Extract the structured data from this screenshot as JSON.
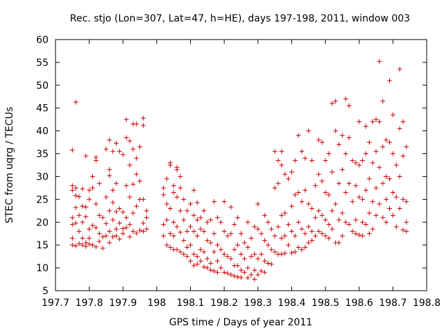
{
  "chart_data": {
    "type": "scatter",
    "title": "Rec. stjo (Lon=307, Lat=47, h=HE), days 197-198, 2011, window 003",
    "xlabel": "GPS time / Days of year 2011",
    "ylabel": "STEC from uqrg / TECUs",
    "xlim": [
      197.7,
      198.8
    ],
    "ylim": [
      5,
      60
    ],
    "xticks": [
      "197.7",
      "197.8",
      "197.9",
      "198",
      "198.1",
      "198.2",
      "198.3",
      "198.4",
      "198.5",
      "198.6",
      "198.7",
      "198.8"
    ],
    "yticks": [
      "5",
      "10",
      "15",
      "20",
      "25",
      "30",
      "35",
      "40",
      "45",
      "50",
      "55",
      "60"
    ],
    "marker": "plus",
    "color": "#cc0000",
    "grid": false,
    "points": [
      [
        197.75,
        35.8
      ],
      [
        197.75,
        28.0
      ],
      [
        197.75,
        27.0
      ],
      [
        197.75,
        21.0
      ],
      [
        197.75,
        19.5
      ],
      [
        197.75,
        16.5
      ],
      [
        197.75,
        15.0
      ],
      [
        197.76,
        46.3
      ],
      [
        197.76,
        27.5
      ],
      [
        197.76,
        25.8
      ],
      [
        197.76,
        23.2
      ],
      [
        197.76,
        19.8
      ],
      [
        197.76,
        14.8
      ],
      [
        197.77,
        25.6
      ],
      [
        197.77,
        21.5
      ],
      [
        197.77,
        18.0
      ],
      [
        197.77,
        15.3
      ],
      [
        197.78,
        27.3
      ],
      [
        197.78,
        23.5
      ],
      [
        197.78,
        20.0
      ],
      [
        197.78,
        16.5
      ],
      [
        197.78,
        15.0
      ],
      [
        197.79,
        34.5
      ],
      [
        197.79,
        23.3
      ],
      [
        197.79,
        21.2
      ],
      [
        197.79,
        15.5
      ],
      [
        197.79,
        14.7
      ],
      [
        197.8,
        27.0
      ],
      [
        197.8,
        25.0
      ],
      [
        197.8,
        18.5
      ],
      [
        197.8,
        16.5
      ],
      [
        197.8,
        15.2
      ],
      [
        197.81,
        30.0
      ],
      [
        197.81,
        27.5
      ],
      [
        197.81,
        19.3
      ],
      [
        197.81,
        15.0
      ],
      [
        197.82,
        34.2
      ],
      [
        197.82,
        33.5
      ],
      [
        197.82,
        24.0
      ],
      [
        197.82,
        18.8
      ],
      [
        197.82,
        14.6
      ],
      [
        197.83,
        28.5
      ],
      [
        197.83,
        21.5
      ],
      [
        197.83,
        17.5
      ],
      [
        197.83,
        15.8
      ],
      [
        197.84,
        21.0
      ],
      [
        197.84,
        16.8
      ],
      [
        197.84,
        14.3
      ],
      [
        197.85,
        36.0
      ],
      [
        197.85,
        25.5
      ],
      [
        197.85,
        19.7
      ],
      [
        197.85,
        17.0
      ],
      [
        197.86,
        38.0
      ],
      [
        197.86,
        31.5
      ],
      [
        197.86,
        30.2
      ],
      [
        197.86,
        22.5
      ],
      [
        197.86,
        18.0
      ],
      [
        197.86,
        15.5
      ],
      [
        197.87,
        35.5
      ],
      [
        197.87,
        27.0
      ],
      [
        197.87,
        24.3
      ],
      [
        197.87,
        20.5
      ],
      [
        197.87,
        16.8
      ],
      [
        197.88,
        37.3
      ],
      [
        197.88,
        28.5
      ],
      [
        197.88,
        22.3
      ],
      [
        197.88,
        18.5
      ],
      [
        197.88,
        17.0
      ],
      [
        197.89,
        35.5
      ],
      [
        197.89,
        23.0
      ],
      [
        197.89,
        19.8
      ],
      [
        197.89,
        16.3
      ],
      [
        197.9,
        34.8
      ],
      [
        197.9,
        22.2
      ],
      [
        197.9,
        18.6
      ],
      [
        197.9,
        17.5
      ],
      [
        197.91,
        42.5
      ],
      [
        197.91,
        38.5
      ],
      [
        197.91,
        28.0
      ],
      [
        197.91,
        21.0
      ],
      [
        197.91,
        18.8
      ],
      [
        197.92,
        37.8
      ],
      [
        197.92,
        32.5
      ],
      [
        197.92,
        25.5
      ],
      [
        197.92,
        19.5
      ],
      [
        197.92,
        16.8
      ],
      [
        197.93,
        41.5
      ],
      [
        197.93,
        36.0
      ],
      [
        197.93,
        28.3
      ],
      [
        197.93,
        22.0
      ],
      [
        197.93,
        18.0
      ],
      [
        197.94,
        41.5
      ],
      [
        197.94,
        34.0
      ],
      [
        197.94,
        30.5
      ],
      [
        197.94,
        23.5
      ],
      [
        197.94,
        17.6
      ],
      [
        197.95,
        36.5
      ],
      [
        197.95,
        29.0
      ],
      [
        197.95,
        25.0
      ],
      [
        197.95,
        18.2
      ],
      [
        197.96,
        42.8
      ],
      [
        197.96,
        41.2
      ],
      [
        197.96,
        25.0
      ],
      [
        197.96,
        19.8
      ],
      [
        197.96,
        18.0
      ],
      [
        197.97,
        22.5
      ],
      [
        197.97,
        21.0
      ],
      [
        197.97,
        18.5
      ],
      [
        198.02,
        27.5
      ],
      [
        198.02,
        26.0
      ],
      [
        198.02,
        19.5
      ],
      [
        198.02,
        17.0
      ],
      [
        198.03,
        29.5
      ],
      [
        198.03,
        24.0
      ],
      [
        198.03,
        20.5
      ],
      [
        198.03,
        15.0
      ],
      [
        198.04,
        33.0
      ],
      [
        198.04,
        32.5
      ],
      [
        198.04,
        23.0
      ],
      [
        198.04,
        17.5
      ],
      [
        198.04,
        14.5
      ],
      [
        198.05,
        28.0
      ],
      [
        198.05,
        26.5
      ],
      [
        198.05,
        20.0
      ],
      [
        198.05,
        17.0
      ],
      [
        198.05,
        14.0
      ],
      [
        198.06,
        32.0
      ],
      [
        198.06,
        31.5
      ],
      [
        198.06,
        25.5
      ],
      [
        198.06,
        19.0
      ],
      [
        198.06,
        14.0
      ],
      [
        198.07,
        30.0
      ],
      [
        198.07,
        27.5
      ],
      [
        198.07,
        22.5
      ],
      [
        198.07,
        17.8
      ],
      [
        198.07,
        13.5
      ],
      [
        198.08,
        25.0
      ],
      [
        198.08,
        20.5
      ],
      [
        198.08,
        16.0
      ],
      [
        198.08,
        13.0
      ],
      [
        198.09,
        22.5
      ],
      [
        198.09,
        18.0
      ],
      [
        198.09,
        14.5
      ],
      [
        198.09,
        12.5
      ],
      [
        198.1,
        24.0
      ],
      [
        198.1,
        19.0
      ],
      [
        198.1,
        15.0
      ],
      [
        198.1,
        11.5
      ],
      [
        198.11,
        27.0
      ],
      [
        198.11,
        21.5
      ],
      [
        198.11,
        18.0
      ],
      [
        198.11,
        13.0
      ],
      [
        198.11,
        10.5
      ],
      [
        198.12,
        24.3
      ],
      [
        198.12,
        20.5
      ],
      [
        198.12,
        17.0
      ],
      [
        198.12,
        12.5
      ],
      [
        198.12,
        10.8
      ],
      [
        198.13,
        21.0
      ],
      [
        198.13,
        18.5
      ],
      [
        198.13,
        14.0
      ],
      [
        198.13,
        11.5
      ],
      [
        198.14,
        22.5
      ],
      [
        198.14,
        18.0
      ],
      [
        198.14,
        13.5
      ],
      [
        198.14,
        10.2
      ],
      [
        198.15,
        20.0
      ],
      [
        198.15,
        16.0
      ],
      [
        198.15,
        12.0
      ],
      [
        198.15,
        10.0
      ],
      [
        198.16,
        20.5
      ],
      [
        198.16,
        15.5
      ],
      [
        198.16,
        11.0
      ],
      [
        198.16,
        9.5
      ],
      [
        198.17,
        24.5
      ],
      [
        198.17,
        17.5
      ],
      [
        198.17,
        13.5
      ],
      [
        198.17,
        9.3
      ],
      [
        198.18,
        21.0
      ],
      [
        198.18,
        15.0
      ],
      [
        198.18,
        11.5
      ],
      [
        198.18,
        9.0
      ],
      [
        198.19,
        20.0
      ],
      [
        198.19,
        14.0
      ],
      [
        198.19,
        10.0
      ],
      [
        198.2,
        24.5
      ],
      [
        198.2,
        18.0
      ],
      [
        198.2,
        13.0
      ],
      [
        198.2,
        9.0
      ],
      [
        198.21,
        17.0
      ],
      [
        198.21,
        12.5
      ],
      [
        198.21,
        8.8
      ],
      [
        198.22,
        23.3
      ],
      [
        198.22,
        17.5
      ],
      [
        198.22,
        12.0
      ],
      [
        198.22,
        8.5
      ],
      [
        198.23,
        19.5
      ],
      [
        198.23,
        14.0
      ],
      [
        198.23,
        10.5
      ],
      [
        198.23,
        8.2
      ],
      [
        198.24,
        21.0
      ],
      [
        198.24,
        15.0
      ],
      [
        198.24,
        10.5
      ],
      [
        198.24,
        8.0
      ],
      [
        198.25,
        17.5
      ],
      [
        198.25,
        13.0
      ],
      [
        198.25,
        9.5
      ],
      [
        198.25,
        7.9
      ],
      [
        198.26,
        15.5
      ],
      [
        198.26,
        12.0
      ],
      [
        198.26,
        9.0
      ],
      [
        198.27,
        20.0
      ],
      [
        198.27,
        14.5
      ],
      [
        198.27,
        10.0
      ],
      [
        198.27,
        7.8
      ],
      [
        198.28,
        16.5
      ],
      [
        198.28,
        12.5
      ],
      [
        198.28,
        8.5
      ],
      [
        198.29,
        19.0
      ],
      [
        198.29,
        13.0
      ],
      [
        198.29,
        9.5
      ],
      [
        198.29,
        7.5
      ],
      [
        198.3,
        24.0
      ],
      [
        198.3,
        18.5
      ],
      [
        198.3,
        12.0
      ],
      [
        198.3,
        8.5
      ],
      [
        198.31,
        17.5
      ],
      [
        198.31,
        13.0
      ],
      [
        198.31,
        9.3
      ],
      [
        198.32,
        21.5
      ],
      [
        198.32,
        16.0
      ],
      [
        198.32,
        11.5
      ],
      [
        198.32,
        9.0
      ],
      [
        198.33,
        20.0
      ],
      [
        198.33,
        15.0
      ],
      [
        198.33,
        11.0
      ],
      [
        198.34,
        18.5
      ],
      [
        198.34,
        14.0
      ],
      [
        198.34,
        10.8
      ],
      [
        198.35,
        35.5
      ],
      [
        198.35,
        27.5
      ],
      [
        198.35,
        17.0
      ],
      [
        198.35,
        13.5
      ],
      [
        198.36,
        33.5
      ],
      [
        198.36,
        28.5
      ],
      [
        198.36,
        19.0
      ],
      [
        198.36,
        13.0
      ],
      [
        198.37,
        35.5
      ],
      [
        198.37,
        32.5
      ],
      [
        198.37,
        21.5
      ],
      [
        198.37,
        16.5
      ],
      [
        198.37,
        13.0
      ],
      [
        198.38,
        30.5
      ],
      [
        198.38,
        22.0
      ],
      [
        198.38,
        17.0
      ],
      [
        198.38,
        13.2
      ],
      [
        198.39,
        29.5
      ],
      [
        198.39,
        19.5
      ],
      [
        198.39,
        15.0
      ],
      [
        198.4,
        31.0
      ],
      [
        198.4,
        23.5
      ],
      [
        198.4,
        18.0
      ],
      [
        198.4,
        13.3
      ],
      [
        198.41,
        33.5
      ],
      [
        198.41,
        26.0
      ],
      [
        198.41,
        17.0
      ],
      [
        198.41,
        13.5
      ],
      [
        198.42,
        39.0
      ],
      [
        198.42,
        26.5
      ],
      [
        198.42,
        20.0
      ],
      [
        198.42,
        14.5
      ],
      [
        198.43,
        35.5
      ],
      [
        198.43,
        24.5
      ],
      [
        198.43,
        18.5
      ],
      [
        198.43,
        14.0
      ],
      [
        198.44,
        34.0
      ],
      [
        198.44,
        27.0
      ],
      [
        198.44,
        17.5
      ],
      [
        198.44,
        14.5
      ],
      [
        198.45,
        40.0
      ],
      [
        198.45,
        24.0
      ],
      [
        198.45,
        19.0
      ],
      [
        198.45,
        15.5
      ],
      [
        198.46,
        33.5
      ],
      [
        198.46,
        23.0
      ],
      [
        198.46,
        18.0
      ],
      [
        198.46,
        16.0
      ],
      [
        198.47,
        28.0
      ],
      [
        198.47,
        21.0
      ],
      [
        198.47,
        17.0
      ],
      [
        198.48,
        38.0
      ],
      [
        198.48,
        30.5
      ],
      [
        198.48,
        22.5
      ],
      [
        198.48,
        18.0
      ],
      [
        198.49,
        37.5
      ],
      [
        198.49,
        29.0
      ],
      [
        198.49,
        21.5
      ],
      [
        198.49,
        17.5
      ],
      [
        198.5,
        33.5
      ],
      [
        198.5,
        26.5
      ],
      [
        198.5,
        20.5
      ],
      [
        198.5,
        17.0
      ],
      [
        198.51,
        35.0
      ],
      [
        198.51,
        26.0
      ],
      [
        198.51,
        19.5
      ],
      [
        198.51,
        16.5
      ],
      [
        198.52,
        46.0
      ],
      [
        198.52,
        31.0
      ],
      [
        198.52,
        22.5
      ],
      [
        198.52,
        18.5
      ],
      [
        198.53,
        46.5
      ],
      [
        198.53,
        40.0
      ],
      [
        198.53,
        24.0
      ],
      [
        198.53,
        15.5
      ],
      [
        198.54,
        37.0
      ],
      [
        198.54,
        28.5
      ],
      [
        198.54,
        20.5
      ],
      [
        198.54,
        15.5
      ],
      [
        198.55,
        39.0
      ],
      [
        198.55,
        31.5
      ],
      [
        198.55,
        22.0
      ],
      [
        198.55,
        17.0
      ],
      [
        198.56,
        47.0
      ],
      [
        198.56,
        35.0
      ],
      [
        198.56,
        26.5
      ],
      [
        198.56,
        20.0
      ],
      [
        198.57,
        45.5
      ],
      [
        198.57,
        38.5
      ],
      [
        198.57,
        28.5
      ],
      [
        198.57,
        19.5
      ],
      [
        198.58,
        33.5
      ],
      [
        198.58,
        24.5
      ],
      [
        198.58,
        18.0
      ],
      [
        198.59,
        33.0
      ],
      [
        198.59,
        28.0
      ],
      [
        198.59,
        20.5
      ],
      [
        198.59,
        17.5
      ],
      [
        198.6,
        42.0
      ],
      [
        198.6,
        32.5
      ],
      [
        198.6,
        25.5
      ],
      [
        198.6,
        17.2
      ],
      [
        198.61,
        33.5
      ],
      [
        198.61,
        25.0
      ],
      [
        198.61,
        20.0
      ],
      [
        198.61,
        17.0
      ],
      [
        198.62,
        41.0
      ],
      [
        198.62,
        35.0
      ],
      [
        198.62,
        27.0
      ],
      [
        198.62,
        19.5
      ],
      [
        198.63,
        37.5
      ],
      [
        198.63,
        29.5
      ],
      [
        198.63,
        22.0
      ],
      [
        198.63,
        17.5
      ],
      [
        198.64,
        42.0
      ],
      [
        198.64,
        33.0
      ],
      [
        198.64,
        24.5
      ],
      [
        198.64,
        18.5
      ],
      [
        198.65,
        42.5
      ],
      [
        198.65,
        35.5
      ],
      [
        198.65,
        27.5
      ],
      [
        198.65,
        21.5
      ],
      [
        198.66,
        55.2
      ],
      [
        198.66,
        42.0
      ],
      [
        198.66,
        32.0
      ],
      [
        198.66,
        24.0
      ],
      [
        198.67,
        46.5
      ],
      [
        198.67,
        36.5
      ],
      [
        198.67,
        28.5
      ],
      [
        198.67,
        21.0
      ],
      [
        198.68,
        38.0
      ],
      [
        198.68,
        30.0
      ],
      [
        198.68,
        25.0
      ],
      [
        198.68,
        20.0
      ],
      [
        198.69,
        51.0
      ],
      [
        198.69,
        37.5
      ],
      [
        198.69,
        29.5
      ],
      [
        198.69,
        23.0
      ],
      [
        198.7,
        43.5
      ],
      [
        198.7,
        35.0
      ],
      [
        198.7,
        26.5
      ],
      [
        198.7,
        21.5
      ],
      [
        198.71,
        32.5
      ],
      [
        198.71,
        25.5
      ],
      [
        198.71,
        19.0
      ],
      [
        198.72,
        53.5
      ],
      [
        198.72,
        40.5
      ],
      [
        198.72,
        30.0
      ],
      [
        198.72,
        23.0
      ],
      [
        198.73,
        42.0
      ],
      [
        198.73,
        34.5
      ],
      [
        198.73,
        25.0
      ],
      [
        198.73,
        18.3
      ],
      [
        198.74,
        36.5
      ],
      [
        198.74,
        24.5
      ],
      [
        198.74,
        20.0
      ],
      [
        198.74,
        18.0
      ]
    ]
  }
}
